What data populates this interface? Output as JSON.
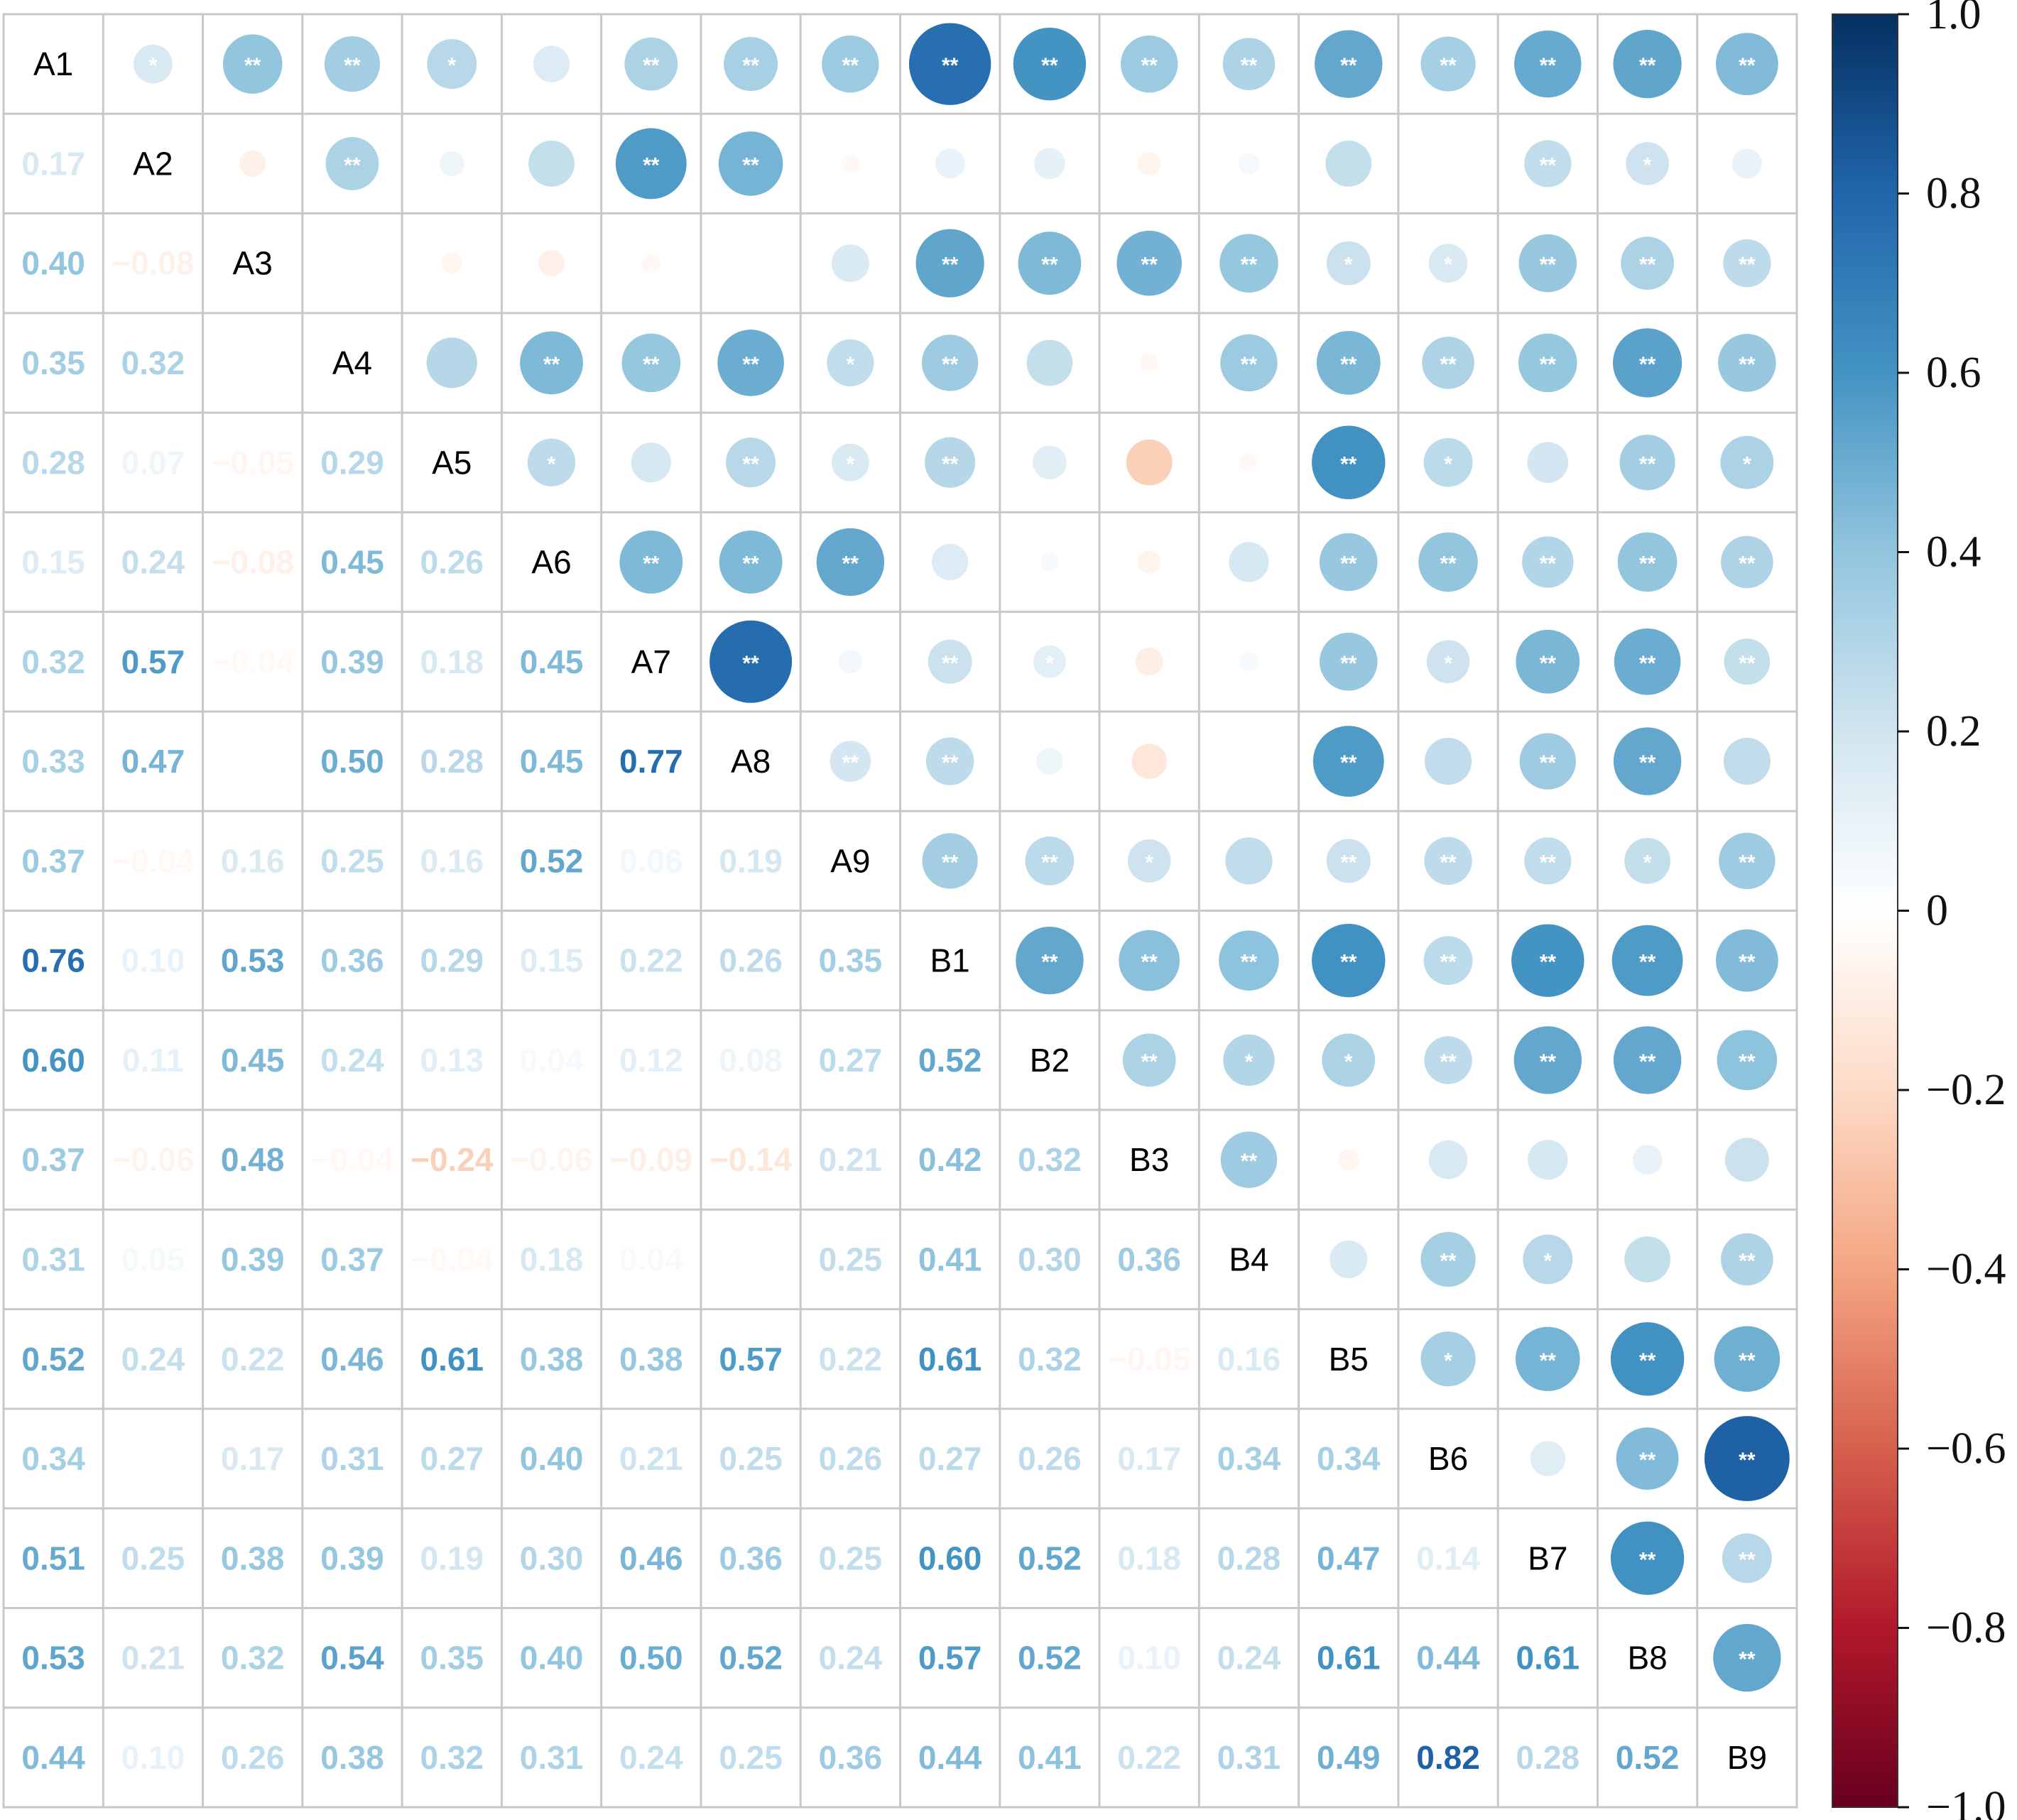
{
  "chart_data": {
    "type": "heatmap",
    "variables": [
      "A1",
      "A2",
      "A3",
      "A4",
      "A5",
      "A6",
      "A7",
      "A8",
      "A9",
      "B1",
      "B2",
      "B3",
      "B4",
      "B5",
      "B6",
      "B7",
      "B8",
      "B9"
    ],
    "lower_triangle_values": [
      [],
      [
        0.17
      ],
      [
        0.4,
        -0.08
      ],
      [
        0.35,
        0.32,
        0.0
      ],
      [
        0.28,
        0.07,
        -0.05,
        0.29
      ],
      [
        0.15,
        0.24,
        -0.08,
        0.45,
        0.26
      ],
      [
        0.32,
        0.57,
        -0.04,
        0.39,
        0.18,
        0.45
      ],
      [
        0.33,
        0.47,
        0.0,
        0.5,
        0.28,
        0.45,
        0.77
      ],
      [
        0.37,
        -0.04,
        0.16,
        0.25,
        0.16,
        0.52,
        0.06,
        0.19
      ],
      [
        0.76,
        0.1,
        0.53,
        0.36,
        0.29,
        0.15,
        0.22,
        0.26,
        0.35
      ],
      [
        0.6,
        0.11,
        0.45,
        0.24,
        0.13,
        0.04,
        0.12,
        0.08,
        0.27,
        0.52
      ],
      [
        0.37,
        -0.06,
        0.48,
        -0.04,
        -0.24,
        -0.06,
        -0.09,
        -0.14,
        0.21,
        0.42,
        0.32
      ],
      [
        0.31,
        0.05,
        0.39,
        0.37,
        -0.04,
        0.18,
        0.04,
        0.0,
        0.25,
        0.41,
        0.3,
        0.36
      ],
      [
        0.52,
        0.24,
        0.22,
        0.46,
        0.61,
        0.38,
        0.38,
        0.57,
        0.22,
        0.61,
        0.32,
        -0.05,
        0.16
      ],
      [
        0.34,
        0.0,
        0.17,
        0.31,
        0.27,
        0.4,
        0.21,
        0.25,
        0.26,
        0.27,
        0.26,
        0.17,
        0.34,
        0.34
      ],
      [
        0.51,
        0.25,
        0.38,
        0.39,
        0.19,
        0.3,
        0.46,
        0.36,
        0.25,
        0.6,
        0.52,
        0.18,
        0.28,
        0.47,
        0.14
      ],
      [
        0.53,
        0.21,
        0.32,
        0.54,
        0.35,
        0.4,
        0.5,
        0.52,
        0.24,
        0.57,
        0.52,
        0.1,
        0.24,
        0.61,
        0.44,
        0.61
      ],
      [
        0.44,
        0.1,
        0.26,
        0.38,
        0.32,
        0.31,
        0.24,
        0.25,
        0.36,
        0.44,
        0.41,
        0.22,
        0.31,
        0.49,
        0.82,
        0.28,
        0.52
      ]
    ],
    "hidden_value_cells": [
      [
        3,
        2
      ],
      [
        7,
        2
      ],
      [
        12,
        7
      ],
      [
        14,
        1
      ]
    ],
    "upper_triangle_stars": [
      [],
      [
        "*"
      ],
      [
        "**",
        ""
      ],
      [
        "**",
        "**",
        ""
      ],
      [
        "*",
        "",
        "",
        ""
      ],
      [
        "",
        "",
        "",
        "**",
        "*"
      ],
      [
        "**",
        "**",
        "",
        "**",
        "",
        "**"
      ],
      [
        "**",
        "**",
        "",
        "**",
        "**",
        "**",
        "**"
      ],
      [
        "**",
        "",
        "",
        "*",
        "*",
        "**",
        "",
        "**"
      ],
      [
        "**",
        "",
        "**",
        "**",
        "**",
        "",
        "**",
        "**",
        "**"
      ],
      [
        "**",
        "",
        "**",
        "",
        "",
        "",
        "*",
        "",
        "**",
        "**"
      ],
      [
        "**",
        "",
        "**",
        "",
        "",
        "",
        "",
        "",
        "*",
        "**",
        "**"
      ],
      [
        "**",
        "",
        "**",
        "**",
        "",
        "",
        "",
        "",
        "",
        "**",
        "*",
        "**"
      ],
      [
        "**",
        "",
        "*",
        "**",
        "**",
        "**",
        "**",
        "**",
        "**",
        "**",
        "*",
        "",
        ""
      ],
      [
        "**",
        "",
        "*",
        "**",
        "*",
        "**",
        "*",
        "",
        "**",
        "**",
        "**",
        "",
        "**",
        "*"
      ],
      [
        "**",
        "**",
        "**",
        "**",
        "",
        "**",
        "**",
        "**",
        "**",
        "**",
        "**",
        "",
        "*",
        "**",
        ""
      ],
      [
        "**",
        "*",
        "**",
        "**",
        "**",
        "**",
        "**",
        "**",
        "*",
        "**",
        "**",
        "",
        "",
        "**",
        "**",
        "**"
      ],
      [
        "**",
        "",
        "**",
        "**",
        "*",
        "**",
        "**",
        "",
        "**",
        "**",
        "**",
        "",
        "**",
        "**",
        "**",
        "**",
        "**"
      ]
    ],
    "colorbar": {
      "range": [
        -1.0,
        1.0
      ],
      "ticks": [
        "1.0",
        "0.8",
        "0.6",
        "0.4",
        "0.2",
        "0",
        "−0.2",
        "−0.4",
        "−0.6",
        "−0.8",
        "−1.0"
      ],
      "colors": [
        "#67001f",
        "#b2182b",
        "#d6604d",
        "#f4a582",
        "#fddbc7",
        "#ffffff",
        "#d1e5f0",
        "#92c5de",
        "#4393c3",
        "#2166ac",
        "#053061"
      ]
    },
    "upper_style": "circle",
    "lower_style": "number",
    "grid": true
  }
}
